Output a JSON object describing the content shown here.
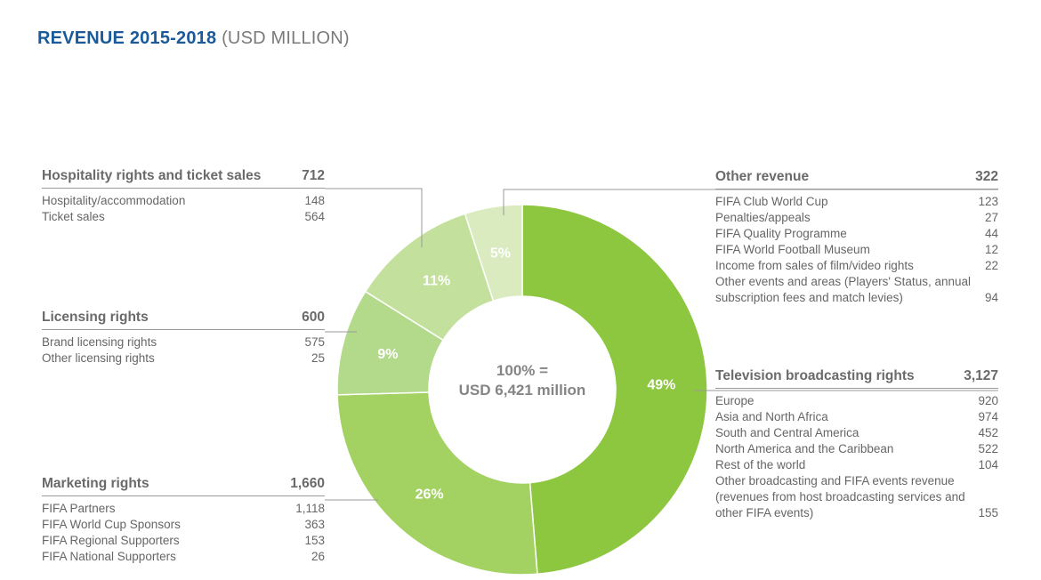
{
  "title": {
    "main": "REVENUE 2015-2018",
    "sub": "(USD MILLION)"
  },
  "center": {
    "line1": "100% =",
    "line2": "USD 6,421 million"
  },
  "colors": {
    "title": "#1a5a9a",
    "leader": "#9a9a9a"
  },
  "panels": {
    "hospitality": {
      "label": "Hospitality rights and ticket sales",
      "value": "712",
      "rows": [
        {
          "label": "Hospitality/accommodation",
          "value": "148"
        },
        {
          "label": "Ticket sales",
          "value": "564"
        }
      ]
    },
    "licensing": {
      "label": "Licensing rights",
      "value": "600",
      "rows": [
        {
          "label": "Brand licensing rights",
          "value": "575"
        },
        {
          "label": "Other licensing rights",
          "value": "25"
        }
      ]
    },
    "marketing": {
      "label": "Marketing rights",
      "value": "1,660",
      "rows": [
        {
          "label": "FIFA Partners",
          "value": "1,118"
        },
        {
          "label": "FIFA World Cup Sponsors",
          "value": "363"
        },
        {
          "label": "FIFA Regional Supporters",
          "value": "153"
        },
        {
          "label": "FIFA National Supporters",
          "value": "26"
        }
      ]
    },
    "other": {
      "label": "Other revenue",
      "value": "322",
      "rows": [
        {
          "label": "FIFA Club World Cup",
          "value": "123"
        },
        {
          "label": "Penalties/appeals",
          "value": "27"
        },
        {
          "label": "FIFA Quality Programme",
          "value": "44"
        },
        {
          "label": "FIFA World Football Museum",
          "value": "12"
        },
        {
          "label": "Income from sales of film/video rights",
          "value": "22"
        },
        {
          "label": "Other events and areas (Players' Status, annual subscription fees and match levies)",
          "value": "94"
        }
      ]
    },
    "tv": {
      "label": "Television broadcasting rights",
      "value": "3,127",
      "rows": [
        {
          "label": "Europe",
          "value": "920"
        },
        {
          "label": "Asia and North Africa",
          "value": "974"
        },
        {
          "label": "South and Central America",
          "value": "452"
        },
        {
          "label": "North America and the Caribbean",
          "value": "522"
        },
        {
          "label": "Rest of the world",
          "value": "104"
        },
        {
          "label": "Other broadcasting and FIFA events revenue (revenues from host broadcasting services and other FIFA events)",
          "value": "155"
        }
      ]
    }
  },
  "chart_data": {
    "type": "pie",
    "title": "REVENUE 2015-2018 (USD MILLION)",
    "total": 6421,
    "slices": [
      {
        "name": "Television broadcasting rights",
        "value": 3127,
        "percent_label": "49%",
        "color": "#8dc63f"
      },
      {
        "name": "Marketing rights",
        "value": 1660,
        "percent_label": "26%",
        "color": "#a3d162"
      },
      {
        "name": "Licensing rights",
        "value": 600,
        "percent_label": "9%",
        "color": "#b3d98a"
      },
      {
        "name": "Hospitality rights and ticket sales",
        "value": 712,
        "percent_label": "11%",
        "color": "#c3e19c"
      },
      {
        "name": "Other revenue",
        "value": 322,
        "percent_label": "5%",
        "color": "#d9ebbf"
      }
    ]
  }
}
